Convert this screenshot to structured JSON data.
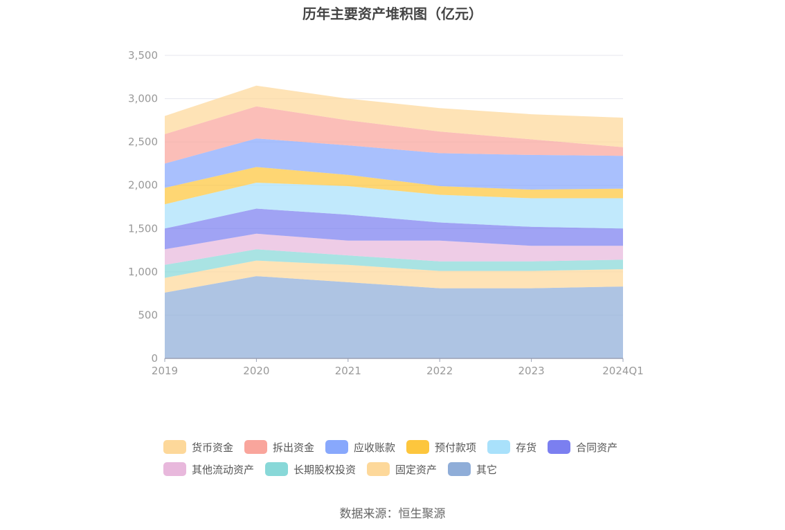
{
  "chart_data": {
    "type": "area",
    "title": "历年主要资产堆积图（亿元）",
    "stacked": true,
    "categories": [
      "2019",
      "2020",
      "2021",
      "2022",
      "2023",
      "2024Q1"
    ],
    "ylim": [
      0,
      3500
    ],
    "yticks": [
      "0",
      "500",
      "1,000",
      "1,500",
      "2,000",
      "2,500",
      "3,000",
      "3,500"
    ],
    "grid": true,
    "legend_position": "bottom",
    "series": [
      {
        "name": "其它",
        "color": "#8fadd8",
        "values": [
          760,
          950,
          880,
          810,
          810,
          830
        ]
      },
      {
        "name": "固定资产",
        "color": "#fdd89a",
        "values": [
          170,
          180,
          200,
          200,
          200,
          200
        ]
      },
      {
        "name": "长期股权投资",
        "color": "#88d8d8",
        "values": [
          150,
          130,
          110,
          110,
          110,
          110
        ]
      },
      {
        "name": "其他流动资产",
        "color": "#e8b8dc",
        "values": [
          180,
          180,
          170,
          240,
          180,
          160
        ]
      },
      {
        "name": "合同资产",
        "color": "#7b7ff0",
        "values": [
          240,
          290,
          300,
          210,
          220,
          200
        ]
      },
      {
        "name": "存货",
        "color": "#a9e1fb",
        "values": [
          280,
          300,
          330,
          320,
          330,
          350
        ]
      },
      {
        "name": "预付款项",
        "color": "#fdc63d",
        "values": [
          190,
          180,
          130,
          100,
          100,
          110
        ]
      },
      {
        "name": "应收账款",
        "color": "#88a8fc",
        "values": [
          280,
          330,
          340,
          380,
          400,
          380
        ]
      },
      {
        "name": "拆出资金",
        "color": "#f9a59c",
        "values": [
          340,
          370,
          290,
          250,
          180,
          100
        ]
      },
      {
        "name": "货币资金",
        "color": "#fdd89a",
        "values": [
          210,
          240,
          250,
          270,
          290,
          340
        ]
      }
    ]
  },
  "legend_rows": [
    [
      "货币资金",
      "拆出资金",
      "应收账款",
      "预付款项",
      "存货",
      "合同资产"
    ],
    [
      "其他流动资产",
      "长期股权投资",
      "固定资产",
      "其它"
    ]
  ],
  "source": "数据来源：恒生聚源"
}
